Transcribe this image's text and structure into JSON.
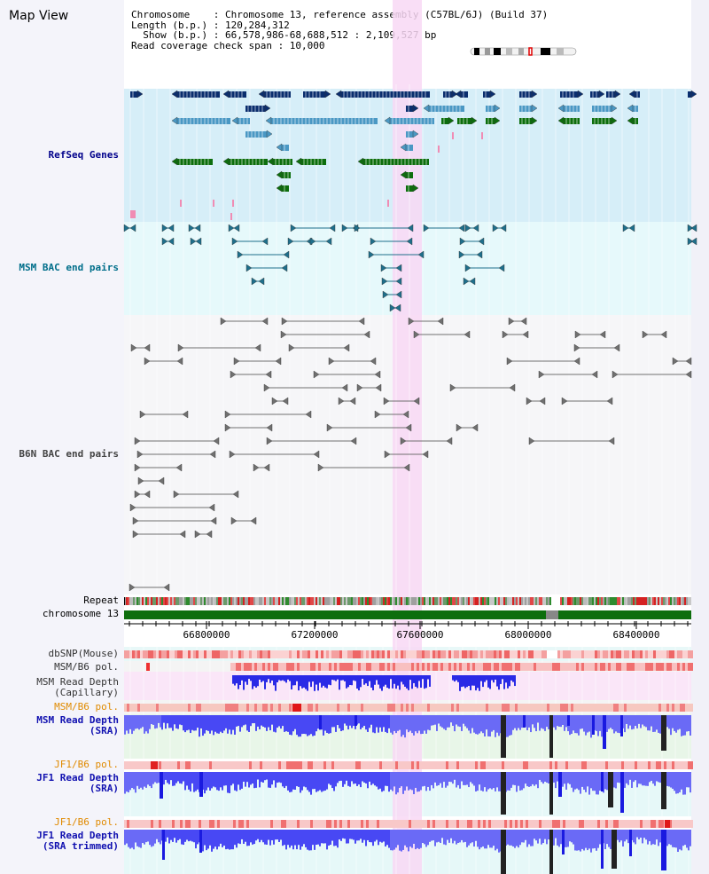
{
  "title": "Map View",
  "info": {
    "chromosome_line": "Chromosome    : Chromosome 13, reference assembly (C57BL/6J) (Build 37)",
    "length_line": "Length (b.p.) : 120,284,312",
    "show_line": "  Show (b.p.) : 66,578,986-68,688,512 : 2,109,527 bp",
    "coverage_line": "Read coverage check span : 10,000"
  },
  "tracks": {
    "refseq": "RefSeq Genes",
    "msm_bac": "MSM BAC end pairs",
    "b6n_bac": "B6N BAC end pairs",
    "repeat": "Repeat",
    "chromosome": "chromosome 13",
    "dbsnp": "dbSNP(Mouse)",
    "msm_pol": "MSM/B6 pol.",
    "msm_cap_1": "MSM Read Depth",
    "msm_cap_2": "(Capillary)",
    "msm_sra_1": "MSM Read Depth",
    "msm_sra_2": "(SRA)",
    "jf1_pol": "JF1/B6 pol.",
    "jf1_sra_1": "JF1 Read Depth",
    "jf1_sra_2": "(SRA)",
    "jf1_trim_1": "JF1 Read Depth",
    "jf1_trim_2": "(SRA trimmed)"
  },
  "axis": {
    "ticks": [
      "66800000",
      "67200000",
      "67600000",
      "68000000",
      "68400000"
    ]
  },
  "colors": {
    "refseq_bg": "#d6eef8",
    "msm_bac_bg": "#e6f9fb",
    "highlight": "#f8d8f4",
    "gene_navy": "#0a2e6e",
    "gene_blue": "#4a98c4",
    "gene_green": "#0d6e0d",
    "gene_pink": "#f08cb4",
    "bac_teal": "#1f6f8b",
    "bac_gray": "#707070",
    "depth_blue": "#2828f0",
    "chromosome_green": "#0d6e0d"
  }
}
